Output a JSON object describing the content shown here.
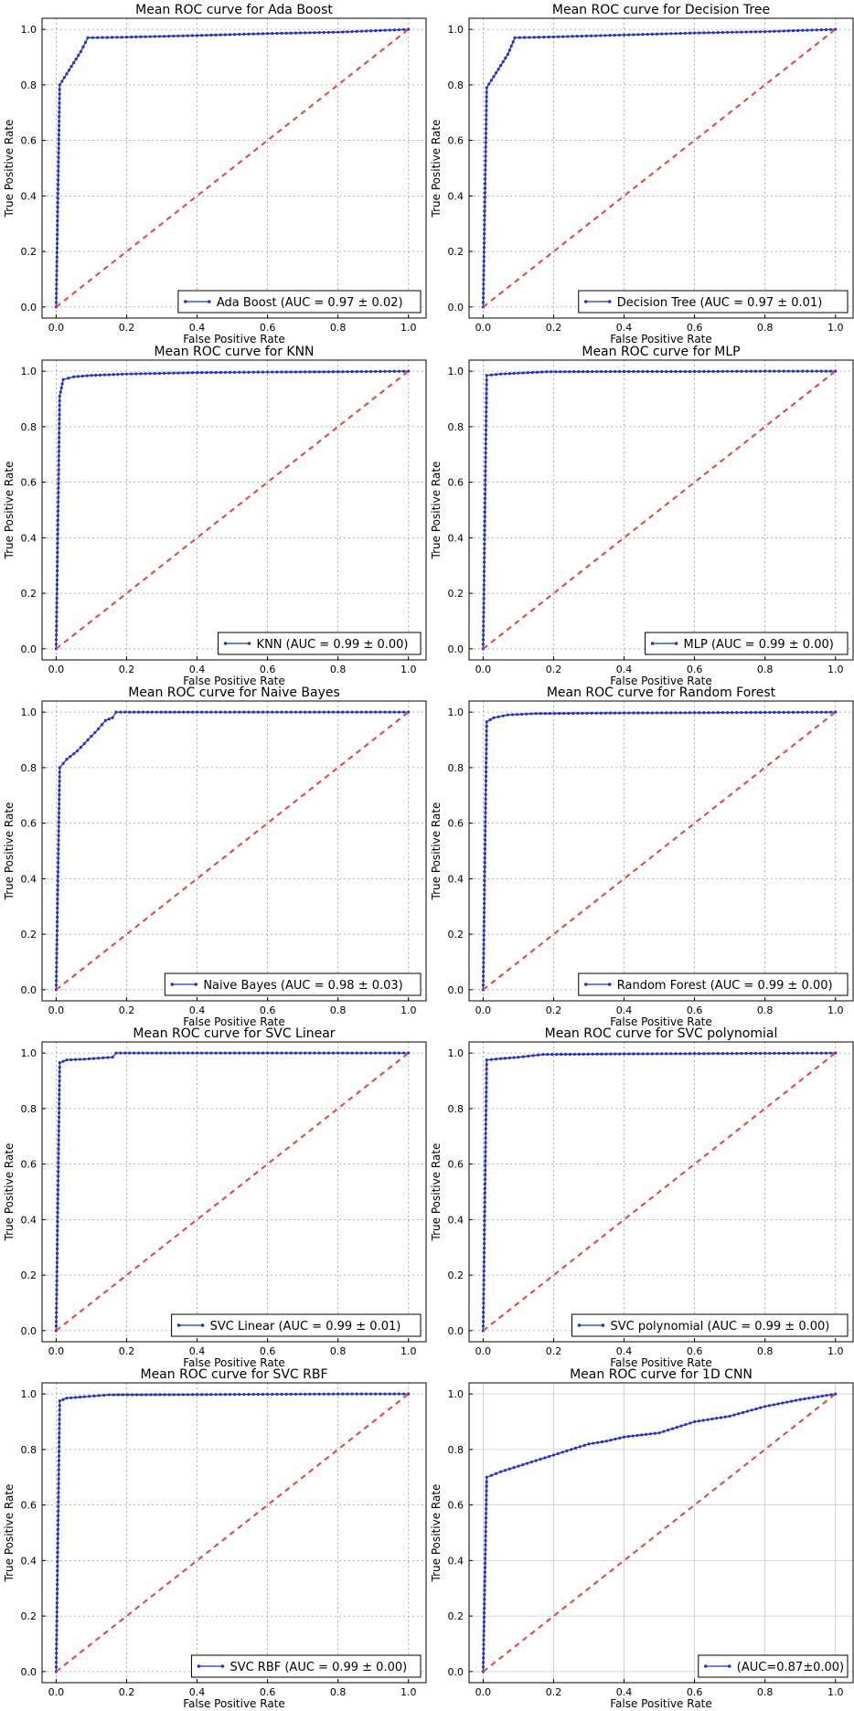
{
  "chart_data": [
    {
      "type": "line",
      "title": "Mean ROC curve for Ada Boost",
      "xlabel": "False Positive Rate",
      "ylabel": "True Positive Rate",
      "xlim": [
        -0.04,
        1.05
      ],
      "ylim": [
        -0.04,
        1.04
      ],
      "grid": "dotted",
      "legend_loc": "lower right",
      "ticks": {
        "x": [
          0.0,
          0.2,
          0.4,
          0.6,
          0.8,
          1.0
        ],
        "y": [
          0.0,
          0.2,
          0.4,
          0.6,
          0.8,
          1.0
        ],
        "labels": [
          "0.0",
          "0.2",
          "0.4",
          "0.6",
          "0.8",
          "1.0"
        ]
      },
      "series": [
        {
          "name": "Ada Boost (AUC = 0.97 ± 0.02)",
          "color": "#1f2fe0",
          "marker": true,
          "points": [
            [
              0,
              0
            ],
            [
              0.01,
              0.8
            ],
            [
              0.03,
              0.84
            ],
            [
              0.05,
              0.88
            ],
            [
              0.07,
              0.92
            ],
            [
              0.09,
              0.97
            ],
            [
              0.2,
              0.972
            ],
            [
              0.4,
              0.978
            ],
            [
              0.6,
              0.985
            ],
            [
              0.8,
              0.99
            ],
            [
              1.0,
              1.0
            ]
          ]
        },
        {
          "name": "",
          "color": "#e8413a",
          "dashed": true,
          "points": [
            [
              0,
              0
            ],
            [
              1,
              1
            ]
          ]
        }
      ]
    },
    {
      "type": "line",
      "title": "Mean ROC curve for Decision Tree",
      "xlabel": "False Positive Rate",
      "ylabel": "True Positive Rate",
      "xlim": [
        -0.04,
        1.05
      ],
      "ylim": [
        -0.04,
        1.04
      ],
      "grid": "dotted",
      "legend_loc": "lower right",
      "ticks": {
        "x": [
          0.0,
          0.2,
          0.4,
          0.6,
          0.8,
          1.0
        ],
        "y": [
          0.0,
          0.2,
          0.4,
          0.6,
          0.8,
          1.0
        ],
        "labels": [
          "0.0",
          "0.2",
          "0.4",
          "0.6",
          "0.8",
          "1.0"
        ]
      },
      "series": [
        {
          "name": "Decision Tree (AUC = 0.97 ± 0.01)",
          "color": "#1f2fe0",
          "marker": true,
          "points": [
            [
              0,
              0
            ],
            [
              0.01,
              0.79
            ],
            [
              0.03,
              0.83
            ],
            [
              0.05,
              0.87
            ],
            [
              0.07,
              0.91
            ],
            [
              0.09,
              0.97
            ],
            [
              0.2,
              0.973
            ],
            [
              0.4,
              0.98
            ],
            [
              0.6,
              0.987
            ],
            [
              0.8,
              0.992
            ],
            [
              1.0,
              1.0
            ]
          ]
        },
        {
          "name": "",
          "color": "#e8413a",
          "dashed": true,
          "points": [
            [
              0,
              0
            ],
            [
              1,
              1
            ]
          ]
        }
      ]
    },
    {
      "type": "line",
      "title": "Mean ROC curve for KNN",
      "xlabel": "False Positive Rate",
      "ylabel": "True Positive Rate",
      "xlim": [
        -0.04,
        1.05
      ],
      "ylim": [
        -0.04,
        1.04
      ],
      "grid": "dotted",
      "legend_loc": "lower right",
      "ticks": {
        "x": [
          0.0,
          0.2,
          0.4,
          0.6,
          0.8,
          1.0
        ],
        "y": [
          0.0,
          0.2,
          0.4,
          0.6,
          0.8,
          1.0
        ],
        "labels": [
          "0.0",
          "0.2",
          "0.4",
          "0.6",
          "0.8",
          "1.0"
        ]
      },
      "series": [
        {
          "name": "KNN (AUC = 0.99 ± 0.00)",
          "color": "#1f2fe0",
          "marker": true,
          "points": [
            [
              0,
              0
            ],
            [
              0.01,
              0.91
            ],
            [
              0.02,
              0.97
            ],
            [
              0.05,
              0.98
            ],
            [
              0.1,
              0.985
            ],
            [
              0.2,
              0.99
            ],
            [
              0.4,
              0.995
            ],
            [
              0.6,
              0.997
            ],
            [
              0.8,
              0.998
            ],
            [
              1.0,
              1.0
            ]
          ]
        },
        {
          "name": "",
          "color": "#e8413a",
          "dashed": true,
          "points": [
            [
              0,
              0
            ],
            [
              1,
              1
            ]
          ]
        }
      ]
    },
    {
      "type": "line",
      "title": "Mean ROC curve for MLP",
      "xlabel": "False Positive Rate",
      "ylabel": "True Positive Rate",
      "xlim": [
        -0.04,
        1.05
      ],
      "ylim": [
        -0.04,
        1.04
      ],
      "grid": "dotted",
      "legend_loc": "lower right",
      "ticks": {
        "x": [
          0.0,
          0.2,
          0.4,
          0.6,
          0.8,
          1.0
        ],
        "y": [
          0.0,
          0.2,
          0.4,
          0.6,
          0.8,
          1.0
        ],
        "labels": [
          "0.0",
          "0.2",
          "0.4",
          "0.6",
          "0.8",
          "1.0"
        ]
      },
      "series": [
        {
          "name": "MLP (AUC = 0.99 ± 0.00)",
          "color": "#1f2fe0",
          "marker": true,
          "points": [
            [
              0,
              0
            ],
            [
              0.01,
              0.985
            ],
            [
              0.05,
              0.99
            ],
            [
              0.1,
              0.993
            ],
            [
              0.18,
              0.998
            ],
            [
              0.4,
              0.999
            ],
            [
              0.6,
              0.999
            ],
            [
              0.8,
              1.0
            ],
            [
              1.0,
              1.0
            ]
          ]
        },
        {
          "name": "",
          "color": "#e8413a",
          "dashed": true,
          "points": [
            [
              0,
              0
            ],
            [
              1,
              1
            ]
          ]
        }
      ]
    },
    {
      "type": "line",
      "title": "Mean ROC curve for Naive Bayes",
      "xlabel": "False Positive Rate",
      "ylabel": "True Positive Rate",
      "xlim": [
        -0.04,
        1.05
      ],
      "ylim": [
        -0.04,
        1.04
      ],
      "grid": "dotted",
      "legend_loc": "lower right",
      "ticks": {
        "x": [
          0.0,
          0.2,
          0.4,
          0.6,
          0.8,
          1.0
        ],
        "y": [
          0.0,
          0.2,
          0.4,
          0.6,
          0.8,
          1.0
        ],
        "labels": [
          "0.0",
          "0.2",
          "0.4",
          "0.6",
          "0.8",
          "1.0"
        ]
      },
      "series": [
        {
          "name": "Naive Bayes (AUC = 0.98 ± 0.03)",
          "color": "#1f2fe0",
          "marker": true,
          "points": [
            [
              0,
              0
            ],
            [
              0.01,
              0.8
            ],
            [
              0.03,
              0.83
            ],
            [
              0.06,
              0.86
            ],
            [
              0.09,
              0.9
            ],
            [
              0.12,
              0.94
            ],
            [
              0.14,
              0.97
            ],
            [
              0.16,
              0.98
            ],
            [
              0.17,
              1.0
            ],
            [
              0.4,
              1.0
            ],
            [
              0.6,
              1.0
            ],
            [
              0.8,
              1.0
            ],
            [
              1.0,
              1.0
            ]
          ]
        },
        {
          "name": "",
          "color": "#e8413a",
          "dashed": true,
          "points": [
            [
              0,
              0
            ],
            [
              1,
              1
            ]
          ]
        }
      ]
    },
    {
      "type": "line",
      "title": "Mean ROC curve for Random Forest",
      "xlabel": "False Positive Rate",
      "ylabel": "True Positive Rate",
      "xlim": [
        -0.04,
        1.05
      ],
      "ylim": [
        -0.04,
        1.04
      ],
      "grid": "dotted",
      "legend_loc": "lower right",
      "ticks": {
        "x": [
          0.0,
          0.2,
          0.4,
          0.6,
          0.8,
          1.0
        ],
        "y": [
          0.0,
          0.2,
          0.4,
          0.6,
          0.8,
          1.0
        ],
        "labels": [
          "0.0",
          "0.2",
          "0.4",
          "0.6",
          "0.8",
          "1.0"
        ]
      },
      "series": [
        {
          "name": "Random Forest (AUC = 0.99 ± 0.00)",
          "color": "#1f2fe0",
          "marker": true,
          "points": [
            [
              0,
              0
            ],
            [
              0.01,
              0.965
            ],
            [
              0.03,
              0.98
            ],
            [
              0.07,
              0.99
            ],
            [
              0.15,
              0.995
            ],
            [
              0.4,
              0.997
            ],
            [
              0.6,
              0.998
            ],
            [
              0.8,
              0.999
            ],
            [
              1.0,
              1.0
            ]
          ]
        },
        {
          "name": "",
          "color": "#e8413a",
          "dashed": true,
          "points": [
            [
              0,
              0
            ],
            [
              1,
              1
            ]
          ]
        }
      ]
    },
    {
      "type": "line",
      "title": "Mean ROC curve for SVC Linear",
      "xlabel": "False Positive Rate",
      "ylabel": "True Positive Rate",
      "xlim": [
        -0.04,
        1.05
      ],
      "ylim": [
        -0.04,
        1.04
      ],
      "grid": "dotted",
      "legend_loc": "lower right",
      "ticks": {
        "x": [
          0.0,
          0.2,
          0.4,
          0.6,
          0.8,
          1.0
        ],
        "y": [
          0.0,
          0.2,
          0.4,
          0.6,
          0.8,
          1.0
        ],
        "labels": [
          "0.0",
          "0.2",
          "0.4",
          "0.6",
          "0.8",
          "1.0"
        ]
      },
      "series": [
        {
          "name": "SVC Linear (AUC = 0.99 ± 0.01)",
          "color": "#1f2fe0",
          "marker": true,
          "points": [
            [
              0,
              0
            ],
            [
              0.01,
              0.965
            ],
            [
              0.03,
              0.975
            ],
            [
              0.08,
              0.978
            ],
            [
              0.16,
              0.985
            ],
            [
              0.17,
              1.0
            ],
            [
              0.4,
              1.0
            ],
            [
              0.6,
              1.0
            ],
            [
              0.8,
              1.0
            ],
            [
              1.0,
              1.0
            ]
          ]
        },
        {
          "name": "",
          "color": "#e8413a",
          "dashed": true,
          "points": [
            [
              0,
              0
            ],
            [
              1,
              1
            ]
          ]
        }
      ]
    },
    {
      "type": "line",
      "title": "Mean ROC curve for SVC polynomial",
      "xlabel": "False Positive Rate",
      "ylabel": "True Positive Rate",
      "xlim": [
        -0.04,
        1.05
      ],
      "ylim": [
        -0.04,
        1.04
      ],
      "grid": "dotted",
      "legend_loc": "lower right",
      "ticks": {
        "x": [
          0.0,
          0.2,
          0.4,
          0.6,
          0.8,
          1.0
        ],
        "y": [
          0.0,
          0.2,
          0.4,
          0.6,
          0.8,
          1.0
        ],
        "labels": [
          "0.0",
          "0.2",
          "0.4",
          "0.6",
          "0.8",
          "1.0"
        ]
      },
      "series": [
        {
          "name": "SVC polynomial (AUC = 0.99 ± 0.00)",
          "color": "#1f2fe0",
          "marker": true,
          "points": [
            [
              0,
              0
            ],
            [
              0.01,
              0.975
            ],
            [
              0.05,
              0.98
            ],
            [
              0.1,
              0.985
            ],
            [
              0.17,
              0.995
            ],
            [
              0.4,
              0.997
            ],
            [
              0.6,
              0.998
            ],
            [
              0.8,
              0.999
            ],
            [
              1.0,
              1.0
            ]
          ]
        },
        {
          "name": "",
          "color": "#e8413a",
          "dashed": true,
          "points": [
            [
              0,
              0
            ],
            [
              1,
              1
            ]
          ]
        }
      ]
    },
    {
      "type": "line",
      "title": "Mean ROC curve for SVC RBF",
      "xlabel": "False Positive Rate",
      "ylabel": "True Positive Rate",
      "xlim": [
        -0.04,
        1.05
      ],
      "ylim": [
        -0.04,
        1.04
      ],
      "grid": "dotted",
      "legend_loc": "lower right",
      "ticks": {
        "x": [
          0.0,
          0.2,
          0.4,
          0.6,
          0.8,
          1.0
        ],
        "y": [
          0.0,
          0.2,
          0.4,
          0.6,
          0.8,
          1.0
        ],
        "labels": [
          "0.0",
          "0.2",
          "0.4",
          "0.6",
          "0.8",
          "1.0"
        ]
      },
      "series": [
        {
          "name": "SVC RBF (AUC = 0.99 ± 0.00)",
          "color": "#1f2fe0",
          "marker": true,
          "points": [
            [
              0,
              0
            ],
            [
              0.01,
              0.975
            ],
            [
              0.03,
              0.985
            ],
            [
              0.08,
              0.99
            ],
            [
              0.15,
              0.997
            ],
            [
              0.4,
              0.998
            ],
            [
              0.6,
              0.999
            ],
            [
              0.8,
              1.0
            ],
            [
              1.0,
              1.0
            ]
          ]
        },
        {
          "name": "",
          "color": "#e8413a",
          "dashed": true,
          "points": [
            [
              0,
              0
            ],
            [
              1,
              1
            ]
          ]
        }
      ]
    },
    {
      "type": "line",
      "title": "Mean ROC curve for 1D CNN",
      "xlabel": "False Positive Rate",
      "ylabel": "True Positive Rate",
      "xlim": [
        -0.04,
        1.05
      ],
      "ylim": [
        -0.04,
        1.04
      ],
      "grid": "solid",
      "legend_loc": "lower right",
      "ticks": {
        "x": [
          0.0,
          0.2,
          0.4,
          0.6,
          0.8,
          1.0
        ],
        "y": [
          0.0,
          0.2,
          0.4,
          0.6,
          0.8,
          1.0
        ],
        "labels": [
          "0.0",
          "0.2",
          "0.4",
          "0.6",
          "0.8",
          "1.0"
        ]
      },
      "series": [
        {
          "name": "(AUC=0.87±0.00)",
          "color": "#1f2fe0",
          "marker": true,
          "points": [
            [
              0,
              0
            ],
            [
              0.01,
              0.7
            ],
            [
              0.05,
              0.72
            ],
            [
              0.1,
              0.74
            ],
            [
              0.15,
              0.76
            ],
            [
              0.2,
              0.78
            ],
            [
              0.25,
              0.8
            ],
            [
              0.3,
              0.82
            ],
            [
              0.35,
              0.83
            ],
            [
              0.4,
              0.845
            ],
            [
              0.5,
              0.86
            ],
            [
              0.55,
              0.88
            ],
            [
              0.6,
              0.9
            ],
            [
              0.7,
              0.92
            ],
            [
              0.8,
              0.955
            ],
            [
              0.9,
              0.98
            ],
            [
              1.0,
              1.0
            ]
          ]
        },
        {
          "name": "",
          "color": "#e8413a",
          "dashed": true,
          "points": [
            [
              0,
              0
            ],
            [
              1,
              1
            ]
          ]
        }
      ]
    }
  ]
}
